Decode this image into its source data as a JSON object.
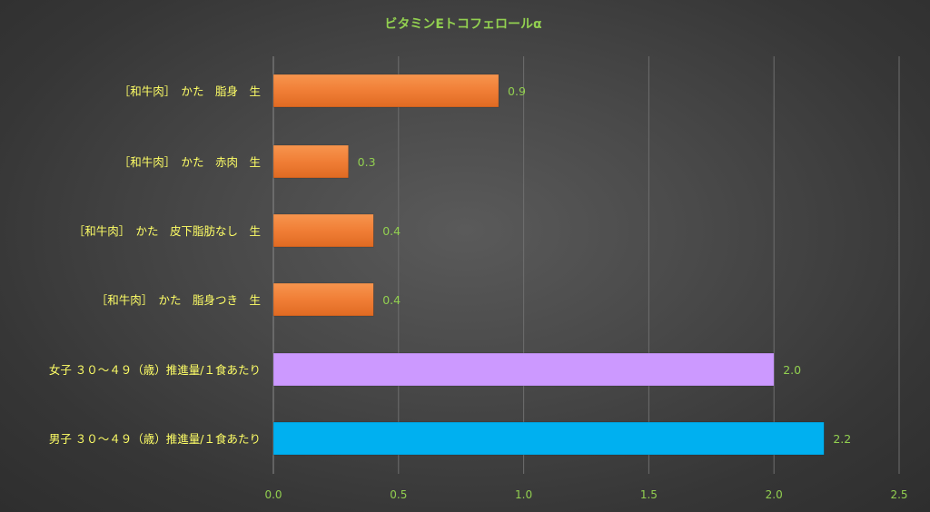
{
  "chart_data": {
    "type": "bar",
    "orientation": "horizontal",
    "title": "ビタミンEトコフェロールα",
    "categories": [
      "［和牛肉］　かた　脂身　生",
      "［和牛肉］　かた　赤肉　生",
      "［和牛肉］　かた　皮下脂肪なし　生",
      "［和牛肉］　かた　脂身つき　生",
      "女子 ３０～４９（歳）推進量/１食あたり",
      "男子 ３０～４９（歳）推進量/１食あたり"
    ],
    "values": [
      0.9,
      0.3,
      0.4,
      0.4,
      2.0,
      2.2
    ],
    "value_labels": [
      "0.9",
      "0.3",
      "0.4",
      "0.4",
      "2.0",
      "2.2"
    ],
    "bar_colors": [
      "#F07E36",
      "#F07E36",
      "#F07E36",
      "#F07E36",
      "#CC99FF",
      "#00B0F0"
    ],
    "xlim": [
      0,
      2.5
    ],
    "x_ticks": [
      "0.0",
      "0.5",
      "1.0",
      "1.5",
      "2.0",
      "2.5"
    ],
    "grid": true,
    "legend": "none",
    "colors": {
      "title": "#92D050",
      "category_label": "#FFFF66",
      "value_label": "#92D050",
      "tick_label": "#92D050",
      "gridline": "#6e6e6e"
    }
  }
}
